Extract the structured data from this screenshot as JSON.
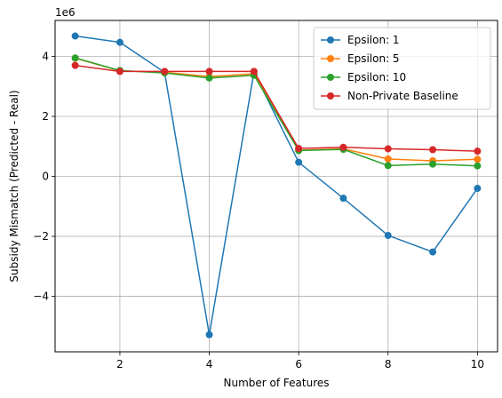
{
  "chart_data": {
    "type": "line",
    "xlabel": "Number of Features",
    "ylabel": "Subsidy Mismatch (Predicted - Real)",
    "offset_text": "1e6",
    "x": [
      1,
      2,
      3,
      4,
      5,
      6,
      7,
      8,
      9,
      10
    ],
    "xlim": [
      0.55,
      10.45
    ],
    "ylim": [
      -5.85,
      5.2
    ],
    "xticks": [
      2,
      4,
      6,
      8,
      10
    ],
    "yticks": [
      -4,
      -2,
      0,
      2,
      4
    ],
    "ytick_labels": [
      "−4",
      "−2",
      "0",
      "2",
      "4"
    ],
    "grid": true,
    "legend_position": "top-right",
    "series": [
      {
        "name": "Epsilon: 1",
        "color": "#1f77b4",
        "values": [
          4.68,
          4.47,
          3.47,
          -5.28,
          3.48,
          0.47,
          -0.73,
          -1.97,
          -2.52,
          -0.4
        ]
      },
      {
        "name": "Epsilon: 5",
        "color": "#ff7f0e",
        "values": [
          3.94,
          3.52,
          3.47,
          3.33,
          3.42,
          0.87,
          0.92,
          0.58,
          0.52,
          0.57
        ]
      },
      {
        "name": "Epsilon: 10",
        "color": "#2ca02c",
        "values": [
          3.95,
          3.53,
          3.45,
          3.28,
          3.37,
          0.86,
          0.9,
          0.36,
          0.41,
          0.35
        ]
      },
      {
        "name": "Non-Private Baseline",
        "color": "#d62728",
        "values": [
          3.7,
          3.5,
          3.5,
          3.5,
          3.5,
          0.93,
          0.97,
          0.92,
          0.89,
          0.84
        ]
      }
    ]
  }
}
